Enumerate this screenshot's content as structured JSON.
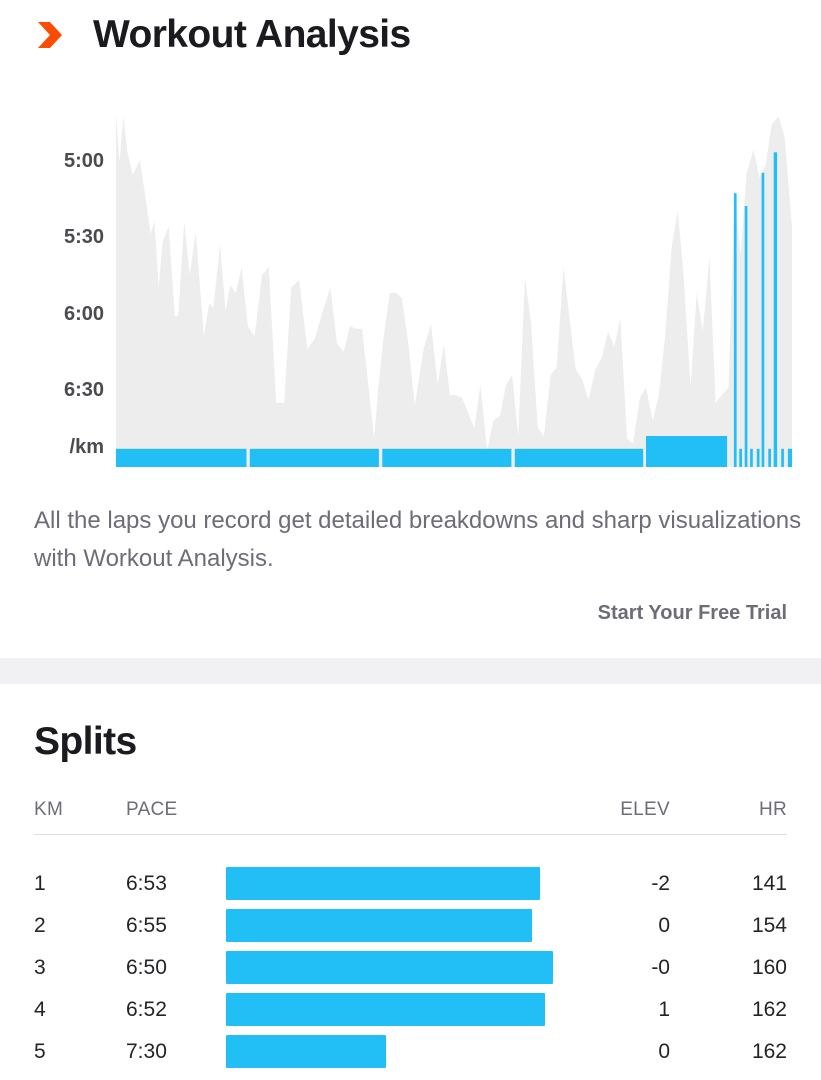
{
  "header": {
    "title": "Workout Analysis",
    "icon": "chevron-right-icon",
    "accent_color": "#fc4c02"
  },
  "chart_data": {
    "type": "area",
    "ylabel": "/km",
    "y_ticks": [
      "5:00",
      "5:30",
      "6:00",
      "6:30"
    ],
    "y_tick_seconds": [
      300,
      330,
      360,
      390
    ],
    "y_axis": "inverted pace, faster at top",
    "series": [
      {
        "type": "area",
        "color": "#ededed",
        "x_fraction": [
          0.0,
          0.005,
          0.011,
          0.017,
          0.025,
          0.035,
          0.044,
          0.051,
          0.057,
          0.063,
          0.069,
          0.078,
          0.087,
          0.092,
          0.101,
          0.109,
          0.118,
          0.13,
          0.138,
          0.144,
          0.154,
          0.162,
          0.169,
          0.177,
          0.186,
          0.195,
          0.205,
          0.216,
          0.226,
          0.237,
          0.249,
          0.259,
          0.271,
          0.283,
          0.294,
          0.306,
          0.317,
          0.327,
          0.337,
          0.346,
          0.355,
          0.364,
          0.373,
          0.382,
          0.388,
          0.396,
          0.405,
          0.414,
          0.423,
          0.433,
          0.442,
          0.455,
          0.466,
          0.476,
          0.485,
          0.494,
          0.503,
          0.512,
          0.521,
          0.53,
          0.539,
          0.549,
          0.558,
          0.568,
          0.577,
          0.586,
          0.595,
          0.605,
          0.614,
          0.624,
          0.633,
          0.643,
          0.652,
          0.662,
          0.671,
          0.68,
          0.69,
          0.699,
          0.709,
          0.719,
          0.728,
          0.737,
          0.746,
          0.756,
          0.765,
          0.775,
          0.784,
          0.794,
          0.803,
          0.812,
          0.822,
          0.831,
          0.84,
          0.85,
          0.859,
          0.868,
          0.878,
          0.887,
          0.896,
          0.906,
          0.915,
          0.924,
          0.933,
          0.943,
          0.952,
          0.961,
          0.97,
          0.98,
          0.989,
          1.0
        ],
        "y_pace_seconds": [
          282,
          301,
          283,
          297,
          306,
          300,
          315,
          329,
          324,
          350,
          332,
          326,
          361,
          361,
          324,
          345,
          328,
          369,
          356,
          358,
          333,
          359,
          349,
          352,
          342,
          365,
          369,
          345,
          342,
          395,
          395,
          350,
          347,
          374,
          370,
          359,
          350,
          372,
          375,
          365,
          366,
          366,
          387,
          409,
          389,
          369,
          352,
          352,
          354,
          373,
          396,
          374,
          364,
          388,
          372,
          392,
          392,
          393,
          399,
          405,
          388,
          414,
          402,
          400,
          388,
          384,
          408,
          346,
          364,
          405,
          408,
          384,
          381,
          342,
          362,
          382,
          386,
          394,
          382,
          377,
          367,
          373,
          362,
          409,
          411,
          393,
          389,
          402,
          392,
          370,
          334,
          320,
          346,
          389,
          352,
          367,
          338,
          395,
          392,
          389,
          313,
          337,
          305,
          296,
          307,
          302,
          286,
          283,
          291,
          326
        ]
      },
      {
        "type": "bar",
        "name": "laps",
        "color": "#21bff5",
        "laps": [
          {
            "x_start": 0.0,
            "x_end": 0.193,
            "pace_seconds": 413
          },
          {
            "x_start": 0.198,
            "x_end": 0.389,
            "pace_seconds": 413
          },
          {
            "x_start": 0.394,
            "x_end": 0.585,
            "pace_seconds": 413
          },
          {
            "x_start": 0.59,
            "x_end": 0.78,
            "pace_seconds": 413
          },
          {
            "x_start": 0.784,
            "x_end": 0.904,
            "pace_seconds": 408
          },
          {
            "x_start": 0.914,
            "x_end": 0.918,
            "pace_seconds": 313
          },
          {
            "x_start": 0.922,
            "x_end": 0.926,
            "pace_seconds": 413
          },
          {
            "x_start": 0.93,
            "x_end": 0.934,
            "pace_seconds": 318
          },
          {
            "x_start": 0.938,
            "x_end": 0.942,
            "pace_seconds": 413
          },
          {
            "x_start": 0.948,
            "x_end": 0.952,
            "pace_seconds": 413
          },
          {
            "x_start": 0.955,
            "x_end": 0.959,
            "pace_seconds": 305
          },
          {
            "x_start": 0.965,
            "x_end": 0.969,
            "pace_seconds": 413
          },
          {
            "x_start": 0.973,
            "x_end": 0.978,
            "pace_seconds": 297
          },
          {
            "x_start": 0.984,
            "x_end": 0.988,
            "pace_seconds": 413
          },
          {
            "x_start": 0.994,
            "x_end": 1.0,
            "pace_seconds": 413
          }
        ]
      }
    ]
  },
  "description": "All the laps you record get detailed breakdowns and sharp visualizations with Workout Analysis.",
  "trial_link": "Start Your Free Trial",
  "splits": {
    "title": "Splits",
    "headers": {
      "km": "KM",
      "pace": "PACE",
      "elev": "ELEV",
      "hr": "HR"
    },
    "bar_color": "#21bff5",
    "rows": [
      {
        "km": "1",
        "pace": "6:53",
        "pace_seconds": 413,
        "elev": "-2",
        "hr": "141"
      },
      {
        "km": "2",
        "pace": "6:55",
        "pace_seconds": 415,
        "elev": "0",
        "hr": "154"
      },
      {
        "km": "3",
        "pace": "6:50",
        "pace_seconds": 410,
        "elev": "-0",
        "hr": "160"
      },
      {
        "km": "4",
        "pace": "6:52",
        "pace_seconds": 412,
        "elev": "1",
        "hr": "162"
      },
      {
        "km": "5",
        "pace": "7:30",
        "pace_seconds": 450,
        "elev": "0",
        "hr": "162"
      }
    ]
  }
}
